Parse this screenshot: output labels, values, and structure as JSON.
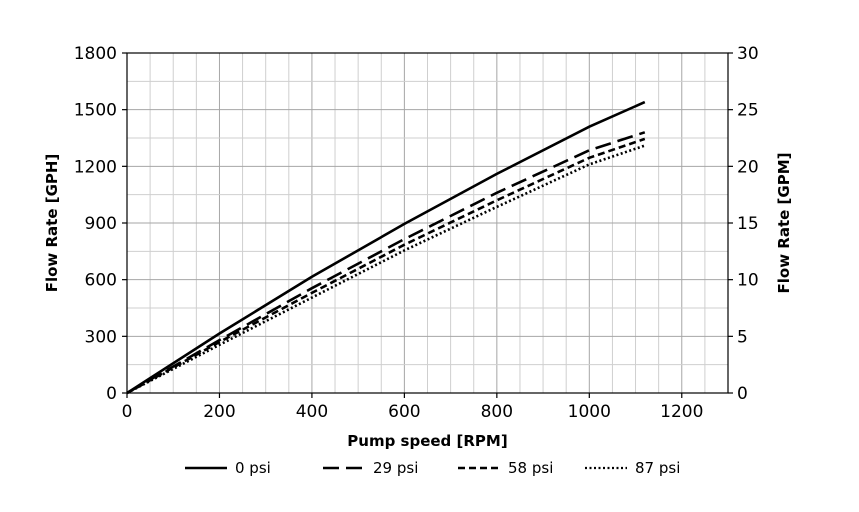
{
  "chart_data": {
    "type": "line",
    "title": "",
    "xlabel": "Pump speed [RPM]",
    "ylabel": "Flow Rate [GPH]",
    "y2label": "Flow Rate [GPM]",
    "xlim": [
      0,
      1300
    ],
    "ylim": [
      0,
      1800
    ],
    "y2lim": [
      0,
      30
    ],
    "xticks": [
      0,
      200,
      400,
      600,
      800,
      1000,
      1200
    ],
    "yticks": [
      0,
      300,
      600,
      900,
      1200,
      1500,
      1800
    ],
    "y2ticks": [
      0,
      5,
      10,
      15,
      20,
      25,
      30
    ],
    "x_minor_step": 50,
    "y_minor_step": 150,
    "grid": true,
    "legend_position": "bottom",
    "series": [
      {
        "name": "0 psi",
        "style": "solid",
        "x": [
          0,
          200,
          400,
          600,
          800,
          1000,
          1120
        ],
        "y": [
          0,
          315,
          615,
          895,
          1160,
          1410,
          1540
        ]
      },
      {
        "name": "29 psi",
        "style": "dash",
        "x": [
          0,
          200,
          400,
          600,
          800,
          1000,
          1120
        ],
        "y": [
          0,
          280,
          555,
          815,
          1060,
          1285,
          1380
        ]
      },
      {
        "name": "58 psi",
        "style": "shortdash",
        "x": [
          0,
          200,
          400,
          600,
          800,
          1000,
          1120
        ],
        "y": [
          0,
          270,
          530,
          785,
          1020,
          1245,
          1345
        ]
      },
      {
        "name": "87 psi",
        "style": "dotted",
        "x": [
          0,
          200,
          400,
          600,
          800,
          1000,
          1120
        ],
        "y": [
          0,
          255,
          505,
          755,
          985,
          1210,
          1310
        ]
      }
    ]
  }
}
